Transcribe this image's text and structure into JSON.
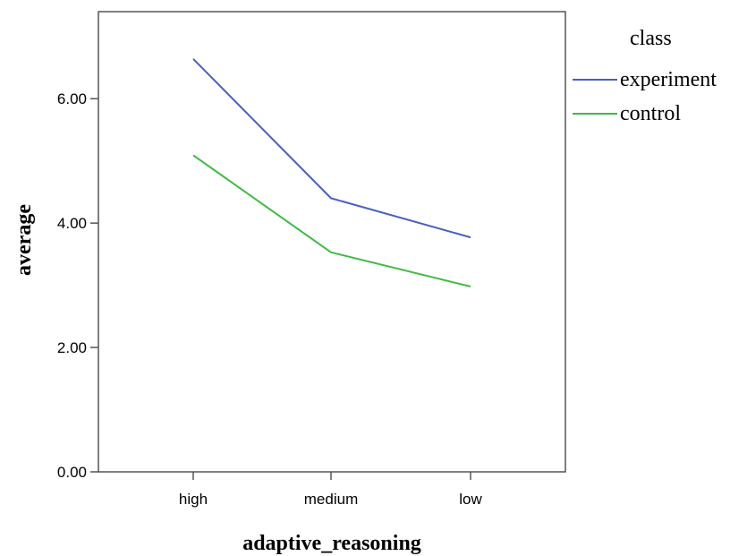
{
  "chart_data": {
    "type": "line",
    "xlabel": "adaptive_reasoning",
    "ylabel": "average",
    "categories": [
      "high",
      "medium",
      "low"
    ],
    "ylim": [
      0,
      7.4
    ],
    "yticks": [
      0,
      2,
      4,
      6
    ],
    "ytick_labels": [
      "0.00",
      "2.00",
      "4.00",
      "6.00"
    ],
    "grid": false,
    "legend": {
      "title": "class",
      "position": "right"
    },
    "series": [
      {
        "name": "experiment",
        "color": "#4a5fc1",
        "values": [
          6.64,
          4.4,
          3.77
        ]
      },
      {
        "name": "control",
        "color": "#3dbb43",
        "values": [
          5.09,
          3.53,
          2.98
        ]
      }
    ]
  }
}
